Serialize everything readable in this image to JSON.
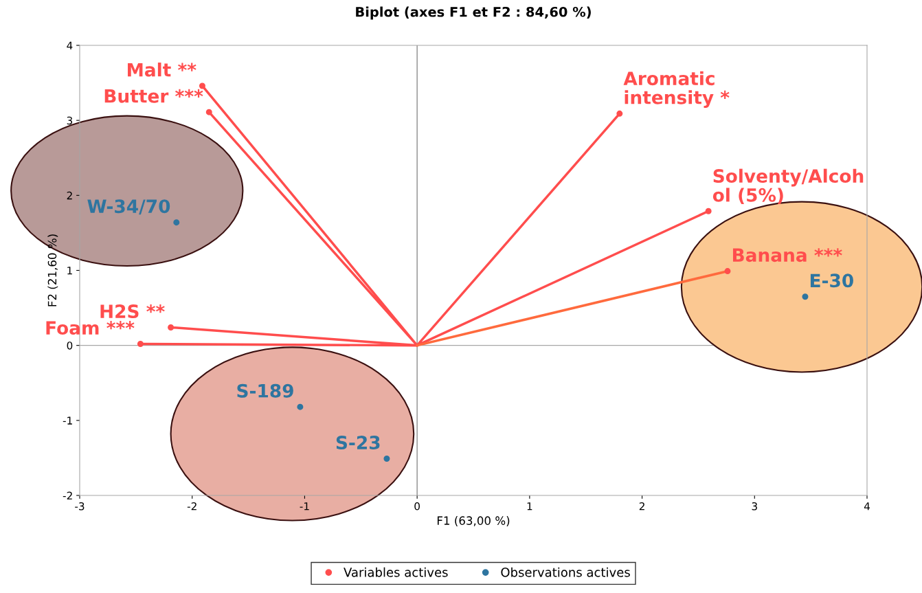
{
  "chart_data": {
    "type": "scatter",
    "title": "Biplot (axes F1 et F2 : 84,60 %)",
    "xlabel": "F1 (63,00 %)",
    "ylabel": "F2 (21,60 %)",
    "xlim": [
      -3,
      4
    ],
    "ylim": [
      -2,
      4
    ],
    "xticks": [
      {
        "value": -3,
        "label": "-3"
      },
      {
        "value": -2,
        "label": "-2"
      },
      {
        "value": -1,
        "label": "-1"
      },
      0,
      1,
      2,
      3,
      4
    ],
    "yticks": [
      {
        "value": -2,
        "label": "-2"
      },
      {
        "value": -1,
        "label": "-1"
      },
      0,
      1,
      2,
      3,
      4
    ],
    "grid": false,
    "legend": "bottom",
    "marker": "circle",
    "ref_lines": [
      {
        "axis": "x",
        "value": 0,
        "color": "#8c8c8c"
      },
      {
        "axis": "y",
        "value": 0,
        "color": "#a6a6a6"
      }
    ],
    "series": [
      {
        "type": "line",
        "color": "#ff4d4d",
        "x": [
          0,
          -1.91,
          null,
          0,
          -1.85,
          null,
          0,
          1.8,
          null,
          0,
          2.59,
          null,
          0,
          -2.19,
          null,
          0,
          -2.46
        ],
        "values": [
          0,
          3.46,
          null,
          0,
          3.11,
          null,
          0,
          3.09,
          null,
          0,
          1.79,
          null,
          0,
          0.24,
          null,
          0,
          0.02
        ],
        "marker": "none"
      },
      {
        "type": "line",
        "color": "#ff6a3d",
        "x": [
          0,
          2.76
        ],
        "values": [
          0,
          0.99
        ],
        "marker": "none"
      },
      {
        "name": "Variables actives",
        "color": "#ff4d4d",
        "x": [
          -1.91,
          -1.85,
          1.8,
          2.59,
          2.76,
          -2.19,
          -2.46
        ],
        "values": [
          3.46,
          3.11,
          3.09,
          1.79,
          0.99,
          0.24,
          0.02
        ]
      },
      {
        "name": "Observations actives",
        "color": "#2e75a0",
        "x": [
          -2.14,
          -1.04,
          -0.27,
          3.45
        ],
        "values": [
          1.64,
          -0.82,
          -1.51,
          0.65
        ]
      }
    ],
    "annotations": [
      {
        "text": "Malt **",
        "x": -1.91,
        "y": 3.46
      },
      {
        "text": "Butter ***",
        "x": -1.85,
        "y": 3.11
      },
      {
        "text": "Aromatic\nintensity *",
        "x": 1.8,
        "y": 3.09
      },
      {
        "text": "Solventy/Alcoh\nol (5%)",
        "x": 2.59,
        "y": 1.79
      },
      {
        "text": "Banana ***",
        "x": 2.76,
        "y": 0.99
      },
      {
        "text": "H2S **",
        "x": -2.19,
        "y": 0.24
      },
      {
        "text": "Foam ***",
        "x": -2.46,
        "y": 0.02
      },
      {
        "text": "W-34/70",
        "x": -2.14,
        "y": 1.64
      },
      {
        "text": "S-189",
        "x": -1.04,
        "y": -0.82
      },
      {
        "text": "S-23",
        "x": -0.27,
        "y": -1.51
      },
      {
        "text": "E-30",
        "x": 3.45,
        "y": 0.65
      }
    ]
  }
}
